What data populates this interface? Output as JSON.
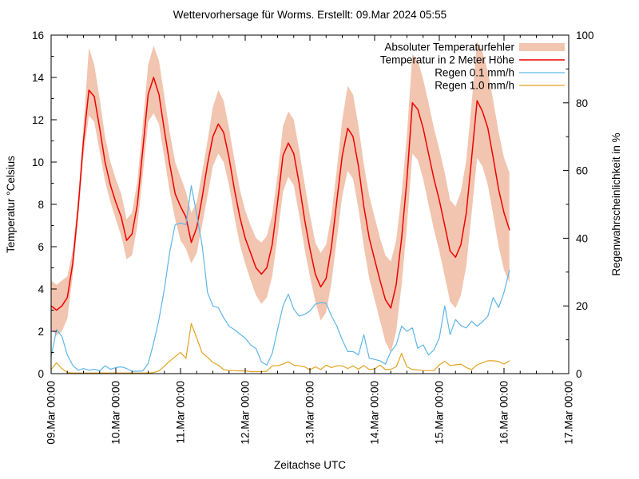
{
  "chart_data": {
    "type": "line",
    "title": "Wettervorhersage für Worms. Erstellt: 09.Mar 2024 05:55",
    "xlabel": "Zeitachse UTC",
    "ylabel_left": "Temperatur °Celsius",
    "ylabel_right": "Regenwahrscheinlichkeit in %",
    "ylim_left": [
      0,
      16
    ],
    "ylim_right": [
      0,
      100
    ],
    "x_range_hours": [
      0,
      192
    ],
    "x_minor_step_hours": 6,
    "x_major_step_hours": 24,
    "y_left_minor_step": 1,
    "y_right_minor_step": 10,
    "y_left_ticks": [
      0,
      2,
      4,
      6,
      8,
      10,
      12,
      14,
      16
    ],
    "y_right_ticks": [
      0,
      20,
      40,
      60,
      80,
      100
    ],
    "x_major_ticks": [
      {
        "hour": 0,
        "label": "09.Mar 00:00"
      },
      {
        "hour": 24,
        "label": "10.Mar 00:00"
      },
      {
        "hour": 48,
        "label": "11.Mar 00:00"
      },
      {
        "hour": 72,
        "label": "12.Mar 00:00"
      },
      {
        "hour": 96,
        "label": "13.Mar 00:00"
      },
      {
        "hour": 120,
        "label": "14.Mar 00:00"
      },
      {
        "hour": 144,
        "label": "15.Mar 00:00"
      },
      {
        "hour": 168,
        "label": "16.Mar 00:00"
      },
      {
        "hour": 192,
        "label": "17.Mar 00:00"
      }
    ],
    "legend_position": "top-right-inside",
    "grid": false,
    "frame_color": "#000000",
    "background": "#ffffff",
    "series": [
      {
        "name": "Absoluter Temperaturfehler",
        "type": "band",
        "axis": "left",
        "color": "#f2c5b0",
        "hours_start": 0,
        "hours_step": 2,
        "lower": [
          2.1,
          1.8,
          2.0,
          2.6,
          4.6,
          7.3,
          10.3,
          12.2,
          11.9,
          10.5,
          9.1,
          8.1,
          7.3,
          6.5,
          5.4,
          5.6,
          7.0,
          9.4,
          11.9,
          12.3,
          11.8,
          10.2,
          8.6,
          7.3,
          6.3,
          5.9,
          5.2,
          5.7,
          7.0,
          8.4,
          9.8,
          10.4,
          10.0,
          8.9,
          7.4,
          6.1,
          5.2,
          4.4,
          3.7,
          3.3,
          3.6,
          4.6,
          6.5,
          8.6,
          9.3,
          8.9,
          7.5,
          5.9,
          4.6,
          3.4,
          2.5,
          2.9,
          4.3,
          6.4,
          8.4,
          9.6,
          9.2,
          7.8,
          6.0,
          4.5,
          3.5,
          2.5,
          1.5,
          1.0,
          2.0,
          4.2,
          7.0,
          10.4,
          10.1,
          9.2,
          8.0,
          6.8,
          5.8,
          4.6,
          3.4,
          3.1,
          3.7,
          5.1,
          7.6,
          10.2,
          9.8,
          8.9,
          7.5,
          6.0,
          4.9,
          4.3
        ],
        "upper": [
          4.4,
          4.2,
          4.4,
          4.6,
          5.8,
          8.3,
          11.7,
          15.4,
          14.6,
          13.0,
          11.2,
          10.0,
          9.2,
          8.5,
          7.3,
          7.6,
          9.1,
          11.8,
          14.6,
          15.5,
          14.8,
          13.1,
          11.4,
          10.0,
          9.3,
          8.6,
          7.6,
          8.1,
          9.5,
          11.0,
          12.6,
          13.4,
          12.9,
          11.6,
          10.1,
          8.7,
          7.7,
          7.0,
          6.4,
          6.2,
          6.5,
          7.5,
          9.4,
          11.7,
          12.4,
          12.0,
          10.6,
          9.0,
          7.5,
          6.2,
          5.7,
          6.1,
          7.5,
          9.7,
          12.0,
          13.6,
          13.2,
          11.7,
          9.9,
          8.4,
          7.4,
          6.4,
          5.6,
          5.3,
          6.3,
          8.5,
          11.3,
          15.1,
          14.8,
          13.9,
          12.8,
          11.6,
          10.6,
          9.5,
          8.2,
          7.9,
          8.6,
          10.1,
          12.8,
          15.7,
          15.2,
          14.3,
          12.9,
          11.4,
          10.2,
          9.5
        ]
      },
      {
        "name": "Temperatur in 2 Meter Höhe",
        "type": "line",
        "axis": "left",
        "color": "#ee0000",
        "width": 1.5,
        "hours_start": 0,
        "hours_step": 2,
        "values": [
          3.2,
          3.0,
          3.2,
          3.6,
          5.2,
          7.8,
          11.0,
          13.4,
          13.1,
          11.6,
          10.0,
          8.9,
          8.1,
          7.4,
          6.3,
          6.6,
          8.0,
          10.6,
          13.2,
          14.0,
          13.2,
          11.5,
          9.9,
          8.5,
          7.9,
          7.4,
          6.2,
          6.9,
          8.3,
          9.9,
          11.2,
          11.8,
          11.4,
          10.2,
          8.7,
          7.4,
          6.4,
          5.7,
          5.0,
          4.7,
          5.0,
          6.1,
          8.1,
          10.3,
          10.9,
          10.4,
          9.0,
          7.3,
          5.9,
          4.7,
          4.1,
          4.5,
          6.0,
          8.2,
          10.3,
          11.6,
          11.2,
          9.8,
          7.9,
          6.4,
          5.4,
          4.4,
          3.5,
          3.1,
          4.2,
          6.4,
          9.2,
          12.8,
          12.5,
          11.6,
          10.4,
          9.2,
          8.2,
          7.0,
          5.8,
          5.5,
          6.1,
          7.6,
          10.2,
          12.9,
          12.4,
          11.6,
          10.2,
          8.7,
          7.6,
          6.8
        ]
      },
      {
        "name": "Regen 0.1 mm/h",
        "type": "line",
        "axis": "right",
        "color": "#5eb6e9",
        "width": 1.2,
        "hours_start": 0,
        "hours_step": 2,
        "values": [
          5,
          13,
          11,
          5.5,
          2.5,
          1.0,
          1.5,
          1.0,
          1.3,
          0.8,
          2.3,
          1.3,
          1.8,
          2.0,
          1.5,
          0.7,
          0.7,
          0.8,
          3.0,
          9.0,
          16,
          25,
          36,
          44,
          44.5,
          44,
          55.5,
          47,
          38,
          24,
          20,
          19.5,
          16.5,
          14,
          13,
          11.7,
          10.5,
          8.5,
          7.4,
          3.5,
          2.5,
          6,
          13,
          20,
          23.5,
          19,
          17,
          17.5,
          18.5,
          20.5,
          21,
          20.8,
          17,
          14,
          10,
          6.5,
          6.5,
          5.5,
          11.5,
          4.5,
          4.2,
          3.8,
          2.8,
          6.5,
          8.5,
          14,
          12.5,
          13.5,
          7.5,
          8.5,
          5.5,
          7,
          10.5,
          20,
          11.5,
          16,
          14.2,
          13.5,
          15.5,
          14,
          15.3,
          17,
          22.5,
          19.5,
          24,
          30.5
        ]
      },
      {
        "name": "Regen 1.0 mm/h",
        "type": "line",
        "axis": "right",
        "color": "#e3a320",
        "width": 1.2,
        "hours_start": 0,
        "hours_step": 2,
        "values": [
          1.2,
          3.2,
          1.5,
          0.3,
          0.2,
          0.2,
          0.2,
          0.2,
          0.2,
          0.2,
          0.2,
          0.2,
          0.2,
          0.2,
          0.2,
          0.2,
          0.2,
          0.2,
          0.2,
          0.3,
          0.8,
          2.2,
          3.7,
          5.0,
          6.3,
          4.5,
          14.8,
          10.5,
          6.2,
          4.8,
          3.3,
          2.5,
          1.2,
          0.9,
          0.9,
          0.8,
          0.8,
          0.6,
          0.6,
          0.6,
          0.7,
          2.3,
          2.3,
          2.8,
          3.5,
          2.5,
          2.3,
          2.0,
          1.1,
          2.0,
          1.2,
          2.5,
          1.8,
          2.3,
          2.3,
          1.5,
          2.3,
          1.3,
          2.4,
          1.2,
          1.4,
          2.5,
          1.2,
          1.3,
          2.0,
          6.0,
          2.0,
          1.2,
          1.1,
          0.9,
          0.9,
          0.9,
          2.6,
          3.6,
          2.4,
          2.6,
          2.8,
          1.8,
          1.2,
          2.6,
          3.2,
          3.8,
          3.8,
          3.6,
          2.8,
          3.8
        ]
      }
    ]
  }
}
